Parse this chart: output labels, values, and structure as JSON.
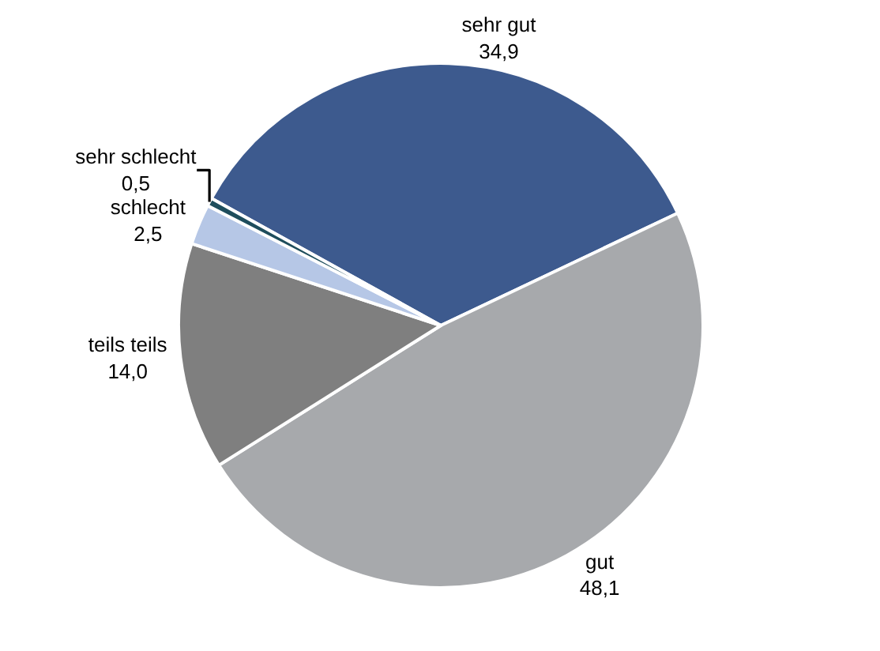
{
  "chart_data": {
    "type": "pie",
    "categories": [
      "sehr gut",
      "gut",
      "teils teils",
      "schlecht",
      "sehr schlecht"
    ],
    "values": [
      34.9,
      48.1,
      14.0,
      2.5,
      0.5
    ],
    "value_labels": [
      "34,9",
      "48,1",
      "14,0",
      "2,5",
      "0,5"
    ],
    "colors": [
      "#3d5a8e",
      "#a7a9ac",
      "#7f7f7f",
      "#b6c7e6",
      "#1e4d5c"
    ],
    "legend": false
  }
}
